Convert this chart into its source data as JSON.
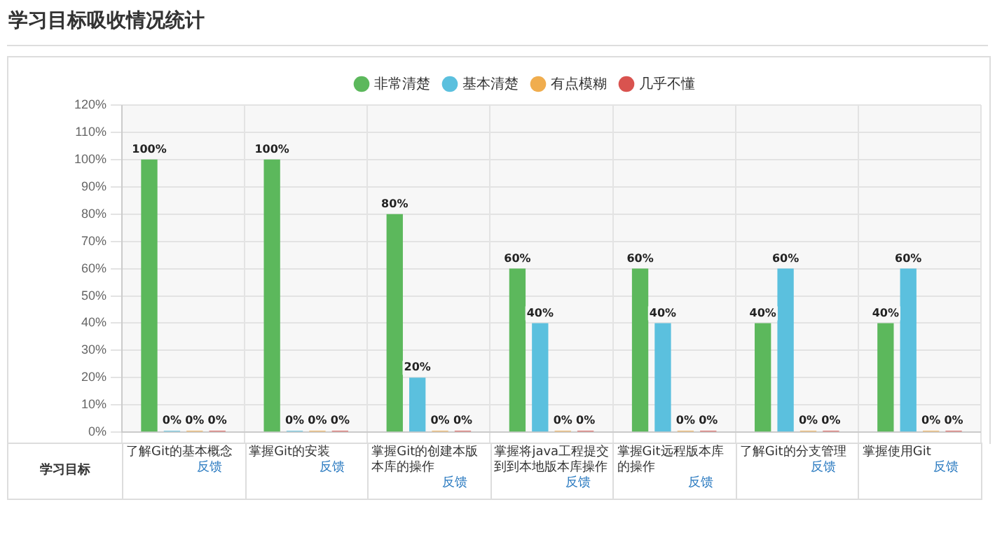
{
  "chart_data": {
    "type": "bar",
    "title": "学习目标吸收情况统计",
    "xlabel": "学习目标",
    "categories": [
      "了解Git的基本概念",
      "掌握Git的安装",
      "掌握Git的创建本版本库的操作",
      "掌握将java工程提交到到本地版本库操作",
      "掌握Git远程版本库的操作",
      "了解Git的分支管理",
      "掌握使用Git"
    ],
    "series": [
      {
        "name": "非常清楚",
        "color": "#5cb85c",
        "values": [
          100,
          100,
          80,
          60,
          60,
          40,
          40
        ],
        "value_labels": [
          "100%",
          "100%",
          "80%",
          "60%",
          "60%",
          "40%",
          "40%"
        ]
      },
      {
        "name": "基本清楚",
        "color": "#5bc0de",
        "values": [
          0,
          0,
          20,
          40,
          40,
          60,
          60
        ],
        "value_labels": [
          "0%",
          "0%",
          "20%",
          "40%",
          "40%",
          "60%",
          "60%"
        ]
      },
      {
        "name": "有点模糊",
        "color": "#f0ad4e",
        "values": [
          0,
          0,
          0,
          0,
          0,
          0,
          0
        ],
        "value_labels": [
          "0%",
          "0%",
          "0%",
          "0%",
          "0%",
          "0%",
          "0%"
        ]
      },
      {
        "name": "几乎不懂",
        "color": "#d9534f",
        "values": [
          0,
          0,
          0,
          0,
          0,
          0,
          0
        ],
        "value_labels": [
          "0%",
          "0%",
          "0%",
          "0%",
          "0%",
          "0%",
          "0%"
        ]
      }
    ],
    "ylim": [
      0,
      120
    ],
    "yticks": [
      {
        "value": 0,
        "label": "0%"
      },
      {
        "value": 10,
        "label": "10%"
      },
      {
        "value": 20,
        "label": "20%"
      },
      {
        "value": 30,
        "label": "30%"
      },
      {
        "value": 40,
        "label": "40%"
      },
      {
        "value": 50,
        "label": "50%"
      },
      {
        "value": 60,
        "label": "60%"
      },
      {
        "value": 70,
        "label": "70%"
      },
      {
        "value": 80,
        "label": "80%"
      },
      {
        "value": 90,
        "label": "90%"
      },
      {
        "value": 100,
        "label": "100%"
      },
      {
        "value": 110,
        "label": "110%"
      },
      {
        "value": 120,
        "label": "120%"
      }
    ],
    "grid": true,
    "legend": "top",
    "tick_labels": "y",
    "annotations": [
      "反馈",
      "反馈",
      "反馈",
      "反馈",
      "反馈",
      "反馈",
      "反馈"
    ]
  }
}
